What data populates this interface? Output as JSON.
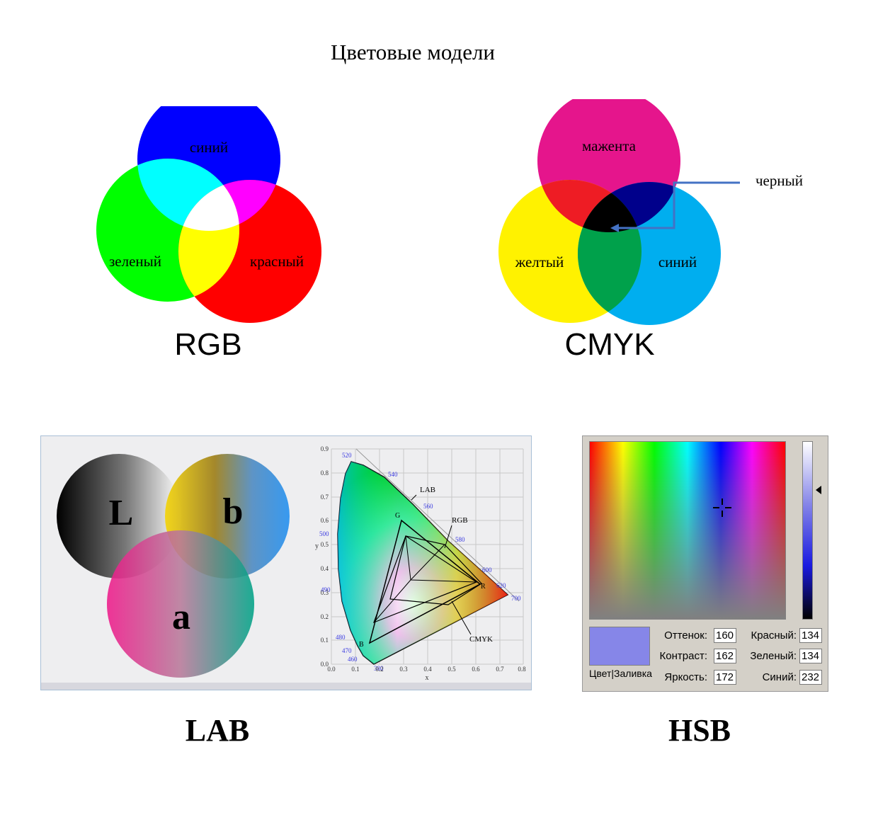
{
  "title": "Цветовые модели",
  "rgb": {
    "label": "RGB",
    "circles": [
      "синий",
      "зеленый",
      "красный"
    ],
    "colors": {
      "blue": "#0000ff",
      "green": "#00ff00",
      "red": "#ff0000",
      "cyan": "#00ffff",
      "magenta": "#ff00ff",
      "yellow": "#ffff00",
      "white": "#ffffff"
    }
  },
  "cmyk": {
    "label": "CMYK",
    "circles": [
      "мажента",
      "желтый",
      "синий"
    ],
    "pointer_label": "черный",
    "colors": {
      "magenta": "#e5158c",
      "yellow": "#fff200",
      "cyan": "#00aeef",
      "red": "#ee1c24",
      "blue": "#00008b",
      "green": "#00a14b",
      "black": "#000000"
    }
  },
  "lab": {
    "label": "LAB",
    "circle_letters": [
      "L",
      "b",
      "a"
    ],
    "chart": {
      "x_axis_label": "x",
      "y_axis_label": "y",
      "x_ticks": [
        "0.0",
        "0.1",
        "0.2",
        "0.3",
        "0.4",
        "0.5",
        "0.6",
        "0.7",
        "0.8"
      ],
      "y_ticks": [
        "0.0",
        "0.1",
        "0.2",
        "0.3",
        "0.4",
        "0.5",
        "0.6",
        "0.7",
        "0.8",
        "0.9"
      ],
      "wavelengths": [
        "520",
        "540",
        "560",
        "580",
        "600",
        "620",
        "700",
        "500",
        "490",
        "480",
        "470",
        "460",
        "380"
      ],
      "gamut_labels": [
        "LAB",
        "RGB",
        "CMYK"
      ],
      "vertex_labels": [
        "G",
        "R",
        "B"
      ]
    }
  },
  "hsb": {
    "label": "HSB",
    "swatch_color": "#8686e8",
    "swatch_caption": "Цвет|Заливка",
    "fields": {
      "hue": {
        "label": "Оттенок:",
        "value": "160"
      },
      "saturation": {
        "label": "Контраст:",
        "value": "162"
      },
      "brightness": {
        "label": "Яркость:",
        "value": "172"
      },
      "red": {
        "label": "Красный:",
        "value": "134"
      },
      "green": {
        "label": "Зеленый:",
        "value": "134"
      },
      "blue": {
        "label": "Синий:",
        "value": "232"
      }
    }
  }
}
